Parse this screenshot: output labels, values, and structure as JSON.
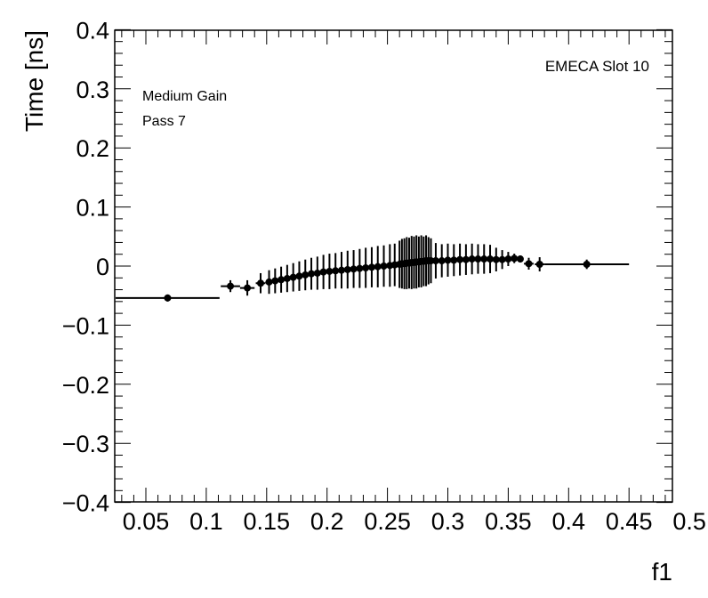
{
  "chart_data": {
    "type": "scatter",
    "title": "",
    "xlabel": "f1",
    "ylabel": "Time [ns]",
    "xlim": [
      0.02,
      0.515
    ],
    "ylim": [
      -0.4,
      0.4
    ],
    "x_ticks": [
      0.05,
      0.1,
      0.15,
      0.2,
      0.25,
      0.3,
      0.35,
      0.4,
      0.45,
      0.5
    ],
    "x_tick_labels": [
      "0.05",
      "0.1",
      "0.15",
      "0.2",
      "0.25",
      "0.3",
      "0.35",
      "0.4",
      "0.45",
      "0.5"
    ],
    "y_ticks": [
      -0.4,
      -0.3,
      -0.2,
      -0.1,
      0,
      0.1,
      0.2,
      0.3,
      0.4
    ],
    "y_tick_labels": [
      "−0.4",
      "−0.3",
      "−0.2",
      "−0.1",
      "0",
      "0.1",
      "0.2",
      "0.3",
      "0.4"
    ],
    "annotations": {
      "top_right": "EMECA Slot 10",
      "line1": "Medium Gain",
      "line2": "Pass 7"
    },
    "grid": false,
    "legend": "none",
    "marker_color": "#000000",
    "series": [
      {
        "points": [
          {
            "x": 0.068,
            "y": -0.054,
            "xerr": 0.043,
            "yerr": 0.006
          },
          {
            "x": 0.12,
            "y": -0.034,
            "xerr": 0.008,
            "yerr": 0.01
          },
          {
            "x": 0.134,
            "y": -0.037,
            "xerr": 0.006,
            "yerr": 0.013
          },
          {
            "x": 0.145,
            "y": -0.029,
            "xerr": 0.004,
            "yerr": 0.017
          },
          {
            "x": 0.152,
            "y": -0.027,
            "xerr": 0.003,
            "yerr": 0.02
          },
          {
            "x": 0.157,
            "y": -0.025,
            "xerr": 0.002,
            "yerr": 0.021
          },
          {
            "x": 0.162,
            "y": -0.023,
            "xerr": 0.002,
            "yerr": 0.022
          },
          {
            "x": 0.167,
            "y": -0.021,
            "xerr": 0.002,
            "yerr": 0.023
          },
          {
            "x": 0.172,
            "y": -0.019,
            "xerr": 0.002,
            "yerr": 0.024
          },
          {
            "x": 0.177,
            "y": -0.017,
            "xerr": 0.002,
            "yerr": 0.025
          },
          {
            "x": 0.182,
            "y": -0.015,
            "xerr": 0.002,
            "yerr": 0.026
          },
          {
            "x": 0.187,
            "y": -0.013,
            "xerr": 0.002,
            "yerr": 0.027
          },
          {
            "x": 0.192,
            "y": -0.012,
            "xerr": 0.002,
            "yerr": 0.028
          },
          {
            "x": 0.197,
            "y": -0.01,
            "xerr": 0.002,
            "yerr": 0.029
          },
          {
            "x": 0.202,
            "y": -0.009,
            "xerr": 0.002,
            "yerr": 0.03
          },
          {
            "x": 0.207,
            "y": -0.008,
            "xerr": 0.002,
            "yerr": 0.03
          },
          {
            "x": 0.212,
            "y": -0.007,
            "xerr": 0.002,
            "yerr": 0.031
          },
          {
            "x": 0.217,
            "y": -0.006,
            "xerr": 0.002,
            "yerr": 0.032
          },
          {
            "x": 0.222,
            "y": -0.005,
            "xerr": 0.002,
            "yerr": 0.032
          },
          {
            "x": 0.227,
            "y": -0.004,
            "xerr": 0.002,
            "yerr": 0.033
          },
          {
            "x": 0.232,
            "y": -0.003,
            "xerr": 0.002,
            "yerr": 0.034
          },
          {
            "x": 0.237,
            "y": -0.002,
            "xerr": 0.002,
            "yerr": 0.034
          },
          {
            "x": 0.242,
            "y": -0.001,
            "xerr": 0.002,
            "yerr": 0.035
          },
          {
            "x": 0.247,
            "y": 0.0,
            "xerr": 0.002,
            "yerr": 0.035
          },
          {
            "x": 0.252,
            "y": 0.001,
            "xerr": 0.002,
            "yerr": 0.036
          },
          {
            "x": 0.256,
            "y": 0.002,
            "xerr": 0.001,
            "yerr": 0.036
          },
          {
            "x": 0.26,
            "y": 0.003,
            "xerr": 0.001,
            "yerr": 0.04
          },
          {
            "x": 0.262,
            "y": 0.004,
            "xerr": 0.001,
            "yerr": 0.042
          },
          {
            "x": 0.264,
            "y": 0.004,
            "xerr": 0.001,
            "yerr": 0.043
          },
          {
            "x": 0.266,
            "y": 0.005,
            "xerr": 0.001,
            "yerr": 0.044
          },
          {
            "x": 0.268,
            "y": 0.005,
            "xerr": 0.001,
            "yerr": 0.043
          },
          {
            "x": 0.27,
            "y": 0.006,
            "xerr": 0.001,
            "yerr": 0.045
          },
          {
            "x": 0.272,
            "y": 0.006,
            "xerr": 0.001,
            "yerr": 0.044
          },
          {
            "x": 0.274,
            "y": 0.007,
            "xerr": 0.001,
            "yerr": 0.045
          },
          {
            "x": 0.276,
            "y": 0.007,
            "xerr": 0.001,
            "yerr": 0.043
          },
          {
            "x": 0.278,
            "y": 0.008,
            "xerr": 0.001,
            "yerr": 0.044
          },
          {
            "x": 0.28,
            "y": 0.008,
            "xerr": 0.001,
            "yerr": 0.042
          },
          {
            "x": 0.282,
            "y": 0.009,
            "xerr": 0.001,
            "yerr": 0.043
          },
          {
            "x": 0.284,
            "y": 0.009,
            "xerr": 0.001,
            "yerr": 0.04
          },
          {
            "x": 0.286,
            "y": 0.009,
            "xerr": 0.001,
            "yerr": 0.038
          },
          {
            "x": 0.29,
            "y": 0.009,
            "xerr": 0.002,
            "yerr": 0.03
          },
          {
            "x": 0.295,
            "y": 0.009,
            "xerr": 0.002,
            "yerr": 0.028
          },
          {
            "x": 0.3,
            "y": 0.01,
            "xerr": 0.002,
            "yerr": 0.028
          },
          {
            "x": 0.305,
            "y": 0.01,
            "xerr": 0.002,
            "yerr": 0.027
          },
          {
            "x": 0.31,
            "y": 0.011,
            "xerr": 0.002,
            "yerr": 0.027
          },
          {
            "x": 0.315,
            "y": 0.011,
            "xerr": 0.002,
            "yerr": 0.026
          },
          {
            "x": 0.32,
            "y": 0.012,
            "xerr": 0.002,
            "yerr": 0.026
          },
          {
            "x": 0.325,
            "y": 0.012,
            "xerr": 0.002,
            "yerr": 0.025
          },
          {
            "x": 0.33,
            "y": 0.012,
            "xerr": 0.002,
            "yerr": 0.025
          },
          {
            "x": 0.335,
            "y": 0.012,
            "xerr": 0.002,
            "yerr": 0.024
          },
          {
            "x": 0.34,
            "y": 0.011,
            "xerr": 0.002,
            "yerr": 0.02
          },
          {
            "x": 0.345,
            "y": 0.011,
            "xerr": 0.002,
            "yerr": 0.016
          },
          {
            "x": 0.35,
            "y": 0.012,
            "xerr": 0.002,
            "yerr": 0.012
          },
          {
            "x": 0.355,
            "y": 0.013,
            "xerr": 0.002,
            "yerr": 0.008
          },
          {
            "x": 0.36,
            "y": 0.012,
            "xerr": 0.002,
            "yerr": 0.006
          },
          {
            "x": 0.367,
            "y": 0.004,
            "xerr": 0.004,
            "yerr": 0.01
          },
          {
            "x": 0.376,
            "y": 0.003,
            "xerr": 0.004,
            "yerr": 0.012
          },
          {
            "x": 0.415,
            "y": 0.003,
            "xerr": 0.035,
            "yerr": 0.008
          }
        ]
      }
    ]
  }
}
